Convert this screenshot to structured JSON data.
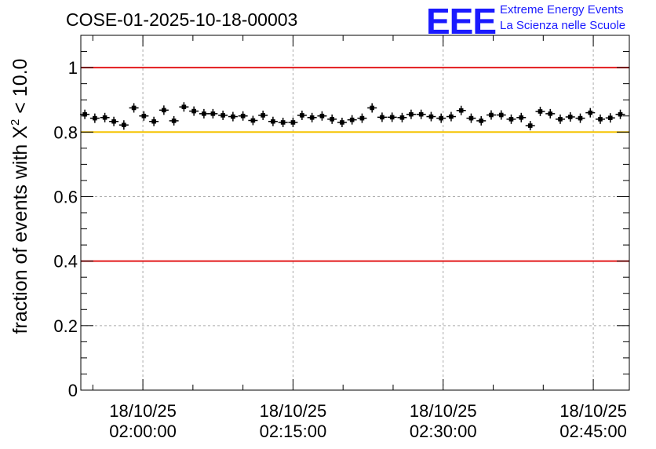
{
  "title": "COSE-01-2025-10-18-00003",
  "logo": {
    "letters": "EEE",
    "line1": "Extreme Energy Events",
    "line2": "La Scienza nelle Scuole",
    "color": "#1a1aff"
  },
  "chart_data": {
    "type": "scatter",
    "title": "COSE-01-2025-10-18-00003",
    "xlabel": "",
    "ylabel": "fraction of events with X² < 10.0",
    "ylabel_parts": {
      "prefix": "fraction of events with ",
      "symbol": "X",
      "superscript": "2",
      "suffix": " < 10.0"
    },
    "xlim_minutes": [
      -6.2,
      48.6
    ],
    "ylim": [
      0,
      1.1
    ],
    "y_ticks": [
      "0",
      "0.2",
      "0.4",
      "0.6",
      "0.8",
      "1"
    ],
    "y_tick_values": [
      0,
      0.2,
      0.4,
      0.6,
      0.8,
      1.0
    ],
    "x_ticks": [
      {
        "minutes": 0,
        "line1": "18/10/25",
        "line2": "02:00:00"
      },
      {
        "minutes": 15,
        "line1": "18/10/25",
        "line2": "02:15:00"
      },
      {
        "minutes": 30,
        "line1": "18/10/25",
        "line2": "02:30:00"
      },
      {
        "minutes": 45,
        "line1": "18/10/25",
        "line2": "02:45:00"
      }
    ],
    "grid": true,
    "reference_lines": [
      {
        "y": 1.0,
        "color": "#e31a1c"
      },
      {
        "y": 0.8,
        "color": "#f5c400"
      },
      {
        "y": 0.4,
        "color": "#e31a1c"
      }
    ],
    "series": [
      {
        "name": "fraction",
        "marker_color": "#000000",
        "x_minutes": [
          -5.8,
          -4.8,
          -3.8,
          -2.9,
          -1.9,
          -0.9,
          0.1,
          1.1,
          2.1,
          3.1,
          4.1,
          5.1,
          6.1,
          7.0,
          8.0,
          9.0,
          10.0,
          11.0,
          12.0,
          13.0,
          14.0,
          15.0,
          15.9,
          16.9,
          17.9,
          18.9,
          19.9,
          20.9,
          21.9,
          22.9,
          23.9,
          24.9,
          25.9,
          26.8,
          27.8,
          28.8,
          29.8,
          30.8,
          31.8,
          32.8,
          33.8,
          34.8,
          35.8,
          36.8,
          37.8,
          38.7,
          39.7,
          40.7,
          41.7,
          42.7,
          43.7,
          44.7,
          45.7,
          46.7,
          47.7
        ],
        "values": [
          0.855,
          0.843,
          0.845,
          0.833,
          0.822,
          0.875,
          0.85,
          0.833,
          0.868,
          0.835,
          0.878,
          0.865,
          0.857,
          0.857,
          0.852,
          0.848,
          0.85,
          0.836,
          0.852,
          0.833,
          0.83,
          0.83,
          0.852,
          0.845,
          0.85,
          0.84,
          0.83,
          0.838,
          0.843,
          0.875,
          0.846,
          0.846,
          0.845,
          0.855,
          0.855,
          0.848,
          0.843,
          0.848,
          0.867,
          0.843,
          0.835,
          0.853,
          0.853,
          0.84,
          0.845,
          0.82,
          0.864,
          0.857,
          0.84,
          0.847,
          0.843,
          0.86,
          0.84,
          0.844,
          0.855
        ]
      }
    ]
  }
}
